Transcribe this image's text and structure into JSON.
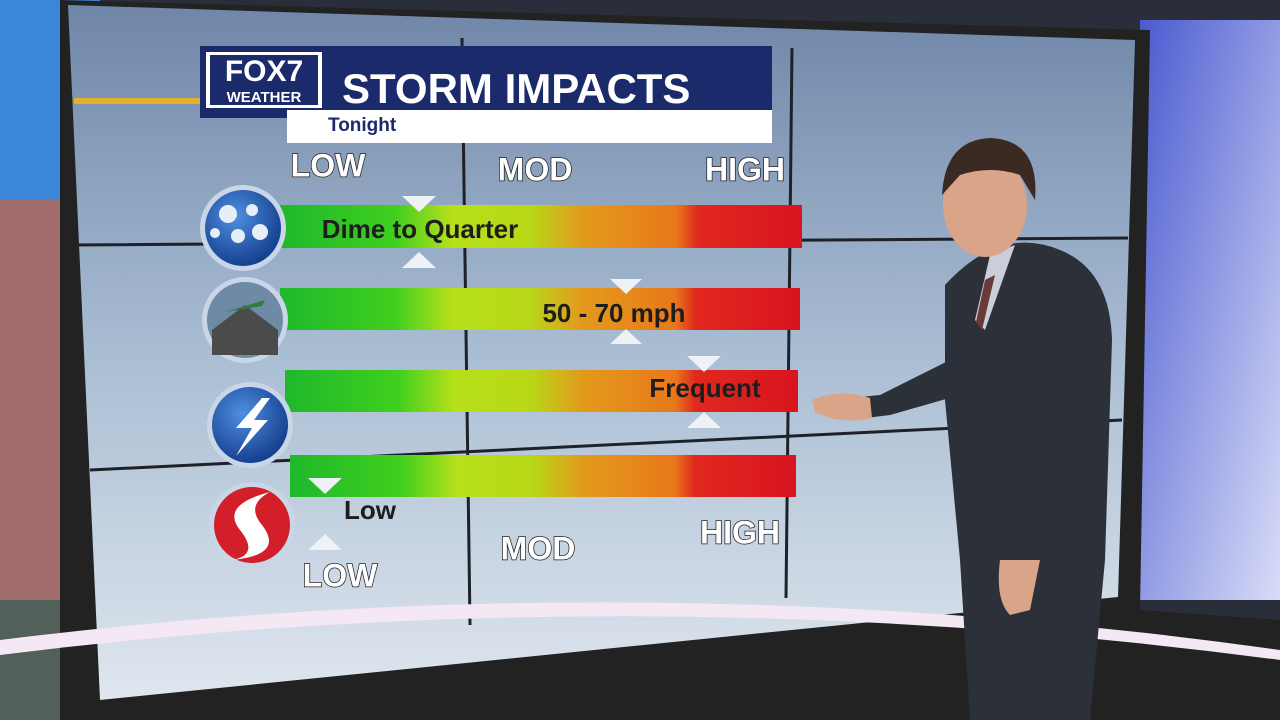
{
  "header": {
    "logo_top": "FOX7",
    "logo_bottom": "WEATHER",
    "title": "STORM IMPACTS",
    "subtitle": "Tonight"
  },
  "scale_top": [
    "LOW",
    "MOD",
    "HIGH"
  ],
  "scale_bottom": [
    "LOW",
    "MOD",
    "HIGH"
  ],
  "rows": [
    {
      "label": "Dime to Quarter"
    },
    {
      "label": "50 - 70 mph"
    },
    {
      "label": "Frequent"
    },
    {
      "label": "Low"
    }
  ]
}
